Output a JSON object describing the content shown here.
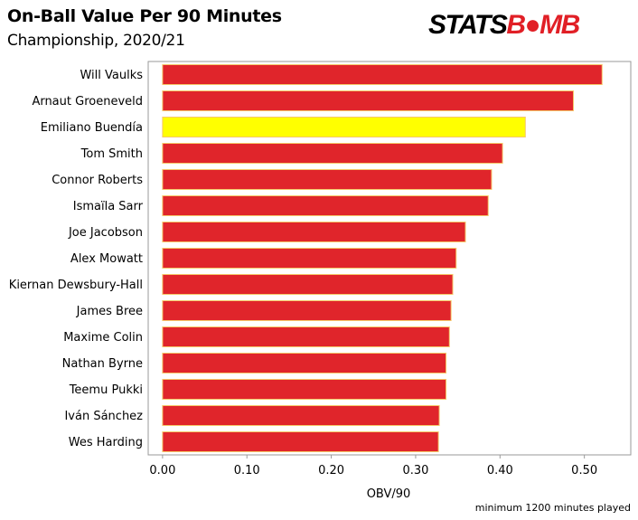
{
  "header": {
    "title": "On-Ball Value Per 90 Minutes",
    "subtitle": "Championship, 2020/21"
  },
  "brand": {
    "text_main": "STATS",
    "text_accent": "B●MB",
    "color_accent": "#e11f26"
  },
  "footnote": "minimum 1200 minutes played",
  "colors": {
    "bar_default": "#e0252b",
    "bar_highlight": "#ffff00",
    "bar_border": "#f5c86a",
    "frame": "#9a9a9a"
  },
  "chart_data": {
    "type": "bar",
    "orientation": "horizontal",
    "categories": [
      "Will Vaulks",
      "Arnaut Groeneveld",
      "Emiliano Buendía",
      "Tom Smith",
      "Connor Roberts",
      "Ismaïla Sarr",
      "Joe Jacobson",
      "Alex Mowatt",
      "Kiernan Dewsbury-Hall",
      "James Bree",
      "Maxime Colin",
      "Nathan Byrne",
      "Teemu Pukki",
      "Iván Sánchez",
      "Wes Harding"
    ],
    "values": [
      0.521,
      0.487,
      0.43,
      0.403,
      0.39,
      0.386,
      0.359,
      0.348,
      0.344,
      0.342,
      0.34,
      0.336,
      0.336,
      0.328,
      0.327
    ],
    "highlight": "Emiliano Buendía",
    "xlabel": "OBV/90",
    "ylabel": "",
    "xlim": [
      -0.017,
      0.555
    ],
    "xticks": [
      0.0,
      0.1,
      0.2,
      0.3,
      0.4,
      0.5
    ],
    "xtick_labels": [
      "0.00",
      "0.10",
      "0.20",
      "0.30",
      "0.40",
      "0.50"
    ],
    "grid": false
  }
}
